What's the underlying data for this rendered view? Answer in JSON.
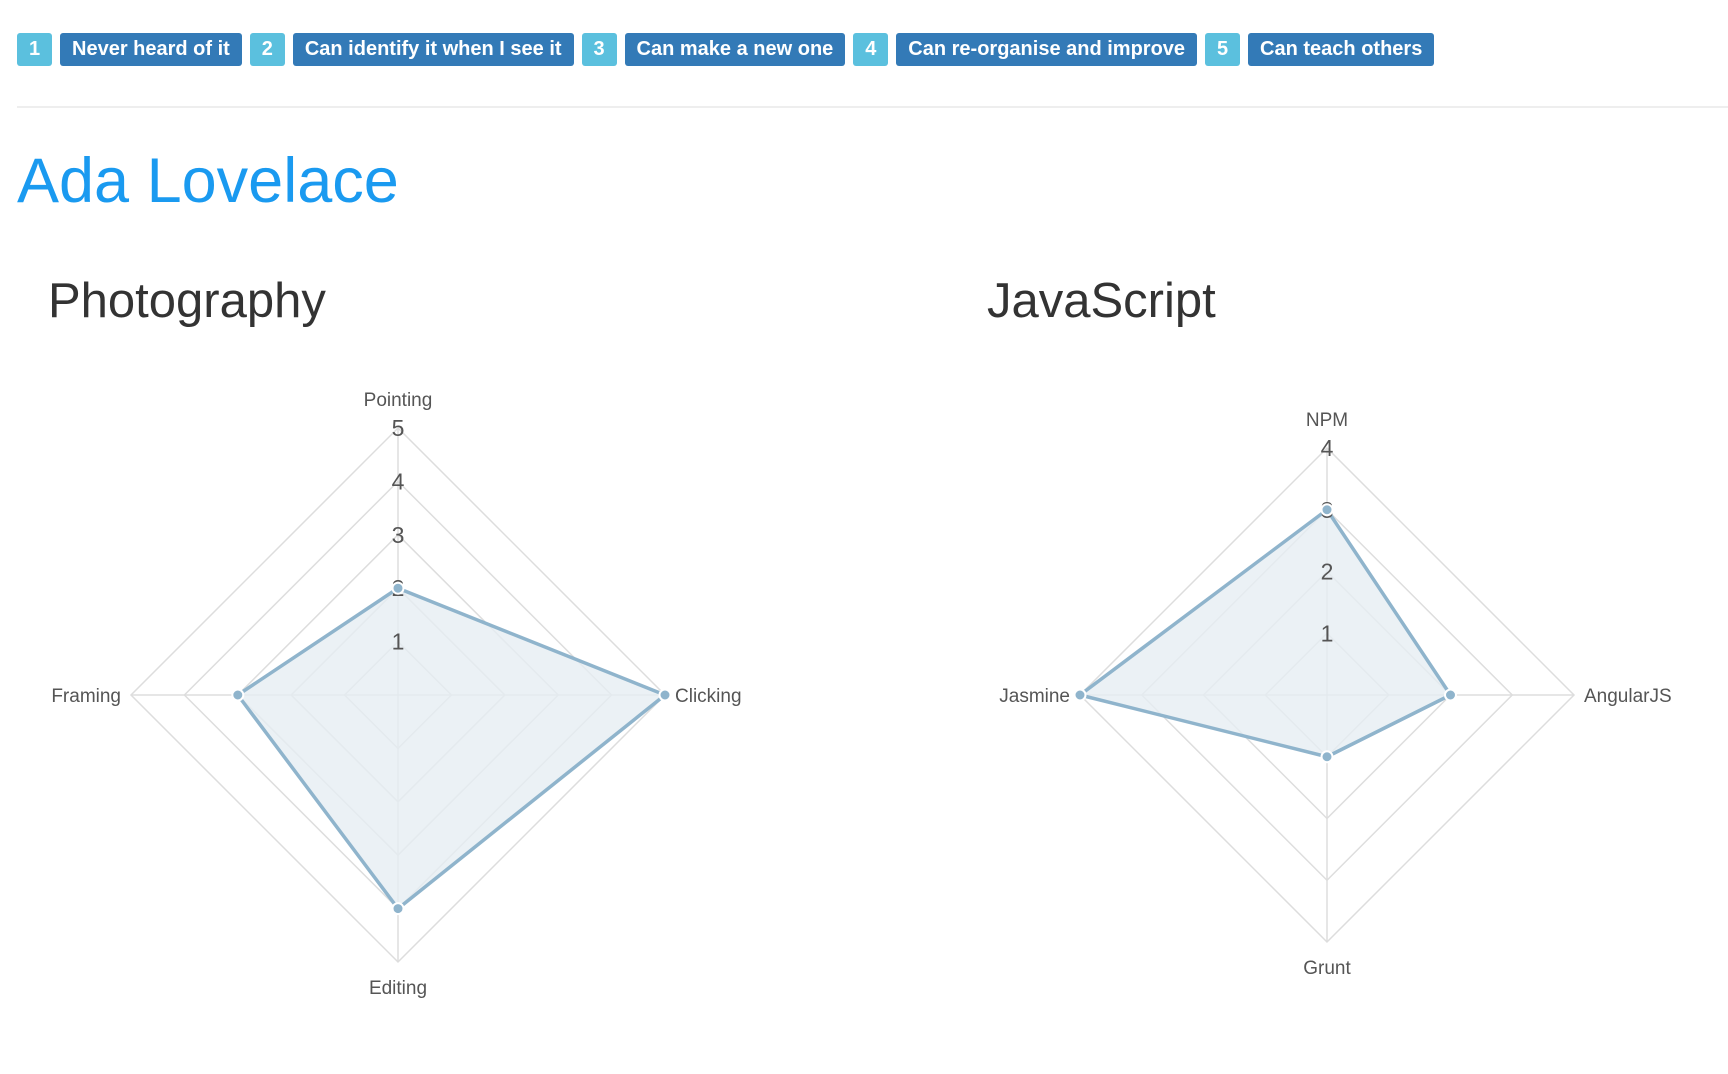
{
  "legend": [
    {
      "num": "1",
      "label": "Never heard of it"
    },
    {
      "num": "2",
      "label": "Can identify it when I see it"
    },
    {
      "num": "3",
      "label": "Can make a new one"
    },
    {
      "num": "4",
      "label": "Can re-organise and improve"
    },
    {
      "num": "5",
      "label": "Can teach others"
    }
  ],
  "person": {
    "name": "Ada Lovelace"
  },
  "colors": {
    "accent": "#1a9af0",
    "badge_num": "#5bc0de",
    "badge_label": "#337ab7",
    "radar_line": "#8fb4cc",
    "radar_fill": "#e6eef3"
  },
  "charts": [
    {
      "title": "Photography"
    },
    {
      "title": "JavaScript"
    }
  ],
  "chart_data": [
    {
      "type": "radar",
      "title": "Photography",
      "axes": [
        "Pointing",
        "Clicking",
        "Editing",
        "Framing"
      ],
      "values": [
        2,
        5,
        4,
        3
      ],
      "max": 5,
      "ticks": [
        "1",
        "2",
        "3",
        "4",
        "5"
      ]
    },
    {
      "type": "radar",
      "title": "JavaScript",
      "axes": [
        "NPM",
        "AngularJS",
        "Grunt",
        "Jasmine"
      ],
      "values": [
        3,
        2,
        1,
        4
      ],
      "max": 4,
      "ticks": [
        "1",
        "2",
        "3",
        "4"
      ]
    }
  ]
}
